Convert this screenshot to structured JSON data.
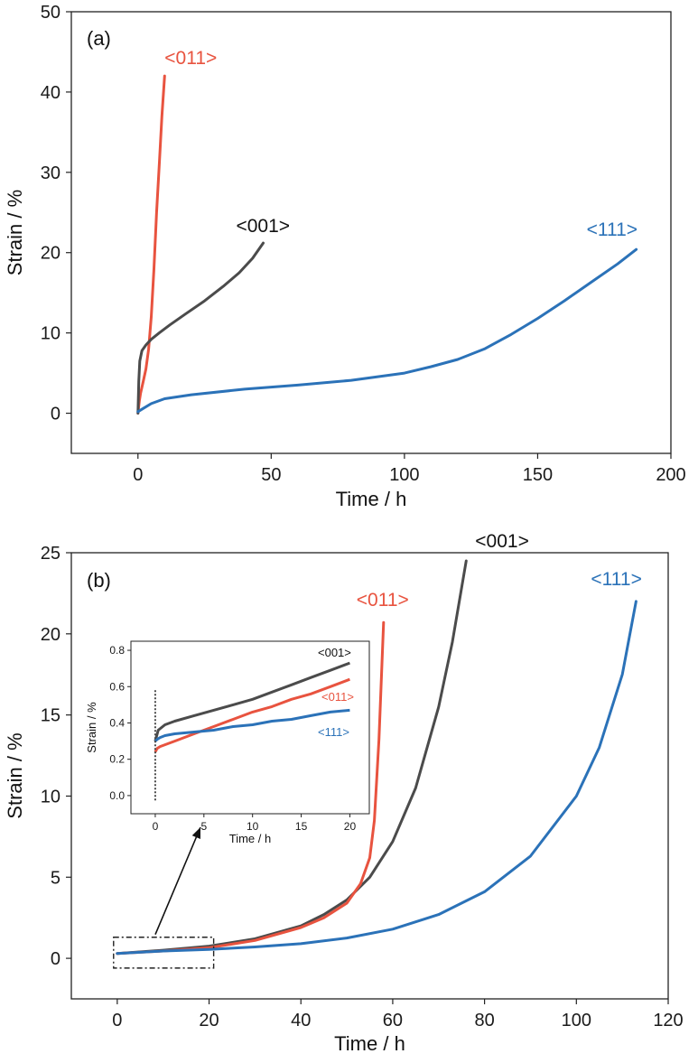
{
  "chart_data": [
    {
      "id": "a",
      "type": "line",
      "panel_label": "(a)",
      "xlabel": "Time / h",
      "ylabel": "Strain / %",
      "xlim": [
        -25,
        200
      ],
      "ylim": [
        -5,
        50
      ],
      "xticks": [
        0,
        50,
        100,
        150,
        200
      ],
      "yticks": [
        0,
        10,
        20,
        30,
        40,
        50
      ],
      "series": [
        {
          "name": "<011>",
          "color": "#e8533f",
          "x": [
            0,
            0.5,
            1,
            2,
            3,
            4,
            5,
            6,
            7,
            8,
            9,
            10
          ],
          "y": [
            0,
            1.5,
            2.5,
            4,
            5.5,
            8,
            12,
            18,
            25,
            31,
            37,
            42
          ]
        },
        {
          "name": "<001>",
          "color": "#4b4b4b",
          "x": [
            0,
            0.3,
            0.7,
            1.5,
            3,
            5,
            8,
            12,
            18,
            25,
            32,
            38,
            43,
            47
          ],
          "y": [
            0,
            4,
            6.5,
            7.8,
            8.5,
            9.2,
            10,
            11,
            12.4,
            14,
            15.8,
            17.5,
            19.3,
            21.2
          ]
        },
        {
          "name": "<111>",
          "color": "#2b72b8",
          "x": [
            0,
            2,
            5,
            10,
            20,
            40,
            60,
            80,
            100,
            110,
            120,
            130,
            140,
            150,
            160,
            170,
            180,
            187
          ],
          "y": [
            0.2,
            0.6,
            1.2,
            1.8,
            2.3,
            3,
            3.5,
            4.1,
            5,
            5.8,
            6.7,
            8,
            9.8,
            11.8,
            14,
            16.3,
            18.6,
            20.4
          ]
        }
      ]
    },
    {
      "id": "b",
      "type": "line",
      "panel_label": "(b)",
      "xlabel": "Time / h",
      "ylabel": "Strain / %",
      "xlim": [
        -10,
        120
      ],
      "ylim": [
        -2.5,
        25
      ],
      "xticks": [
        0,
        20,
        40,
        60,
        80,
        100,
        120
      ],
      "yticks": [
        0,
        5,
        10,
        15,
        20,
        25
      ],
      "series": [
        {
          "name": "<001>",
          "color": "#4b4b4b",
          "x": [
            0,
            10,
            20,
            30,
            40,
            45,
            50,
            55,
            60,
            65,
            70,
            73,
            76
          ],
          "y": [
            0.3,
            0.5,
            0.75,
            1.2,
            2,
            2.7,
            3.6,
            5,
            7.2,
            10.5,
            15.5,
            19.5,
            24.5
          ]
        },
        {
          "name": "<011>",
          "color": "#e8533f",
          "x": [
            0,
            10,
            20,
            30,
            40,
            45,
            50,
            53,
            55,
            56,
            57,
            58
          ],
          "y": [
            0.3,
            0.45,
            0.65,
            1.1,
            1.9,
            2.5,
            3.4,
            4.6,
            6.2,
            8.5,
            13.5,
            20.7
          ]
        },
        {
          "name": "<111>",
          "color": "#2b72b8",
          "x": [
            0,
            10,
            20,
            30,
            40,
            50,
            60,
            70,
            80,
            90,
            100,
            105,
            110,
            113
          ],
          "y": [
            0.3,
            0.45,
            0.55,
            0.7,
            0.9,
            1.25,
            1.8,
            2.7,
            4.1,
            6.3,
            10,
            13,
            17.5,
            22
          ]
        }
      ],
      "inset": {
        "xlabel": "Time / h",
        "ylabel": "Strain / %",
        "xlim": [
          -2.5,
          22
        ],
        "ylim": [
          -0.1,
          0.85
        ],
        "xticks": [
          0,
          5,
          10,
          15,
          20
        ],
        "yticks": [
          0.0,
          0.2,
          0.4,
          0.6,
          0.8
        ],
        "series": [
          {
            "name": "<001>",
            "color": "#4b4b4b",
            "x": [
              0,
              0.1,
              0.3,
              1,
              2,
              4,
              6,
              8,
              10,
              12,
              14,
              16,
              18,
              20
            ],
            "y": [
              0.3,
              0.32,
              0.36,
              0.39,
              0.41,
              0.44,
              0.47,
              0.5,
              0.53,
              0.57,
              0.61,
              0.65,
              0.69,
              0.73
            ]
          },
          {
            "name": "<011>",
            "color": "#e8533f",
            "x": [
              0,
              0.2,
              0.5,
              1,
              2,
              4,
              6,
              8,
              10,
              12,
              14,
              16,
              18,
              20
            ],
            "y": [
              0.24,
              0.26,
              0.27,
              0.28,
              0.3,
              0.34,
              0.38,
              0.42,
              0.46,
              0.49,
              0.53,
              0.56,
              0.6,
              0.64
            ]
          },
          {
            "name": "<111>",
            "color": "#2b72b8",
            "x": [
              0,
              0.2,
              0.5,
              1,
              2,
              4,
              6,
              8,
              10,
              12,
              14,
              16,
              18,
              20
            ],
            "y": [
              0.3,
              0.31,
              0.32,
              0.33,
              0.34,
              0.35,
              0.36,
              0.38,
              0.39,
              0.41,
              0.42,
              0.44,
              0.46,
              0.47
            ]
          }
        ]
      }
    }
  ]
}
